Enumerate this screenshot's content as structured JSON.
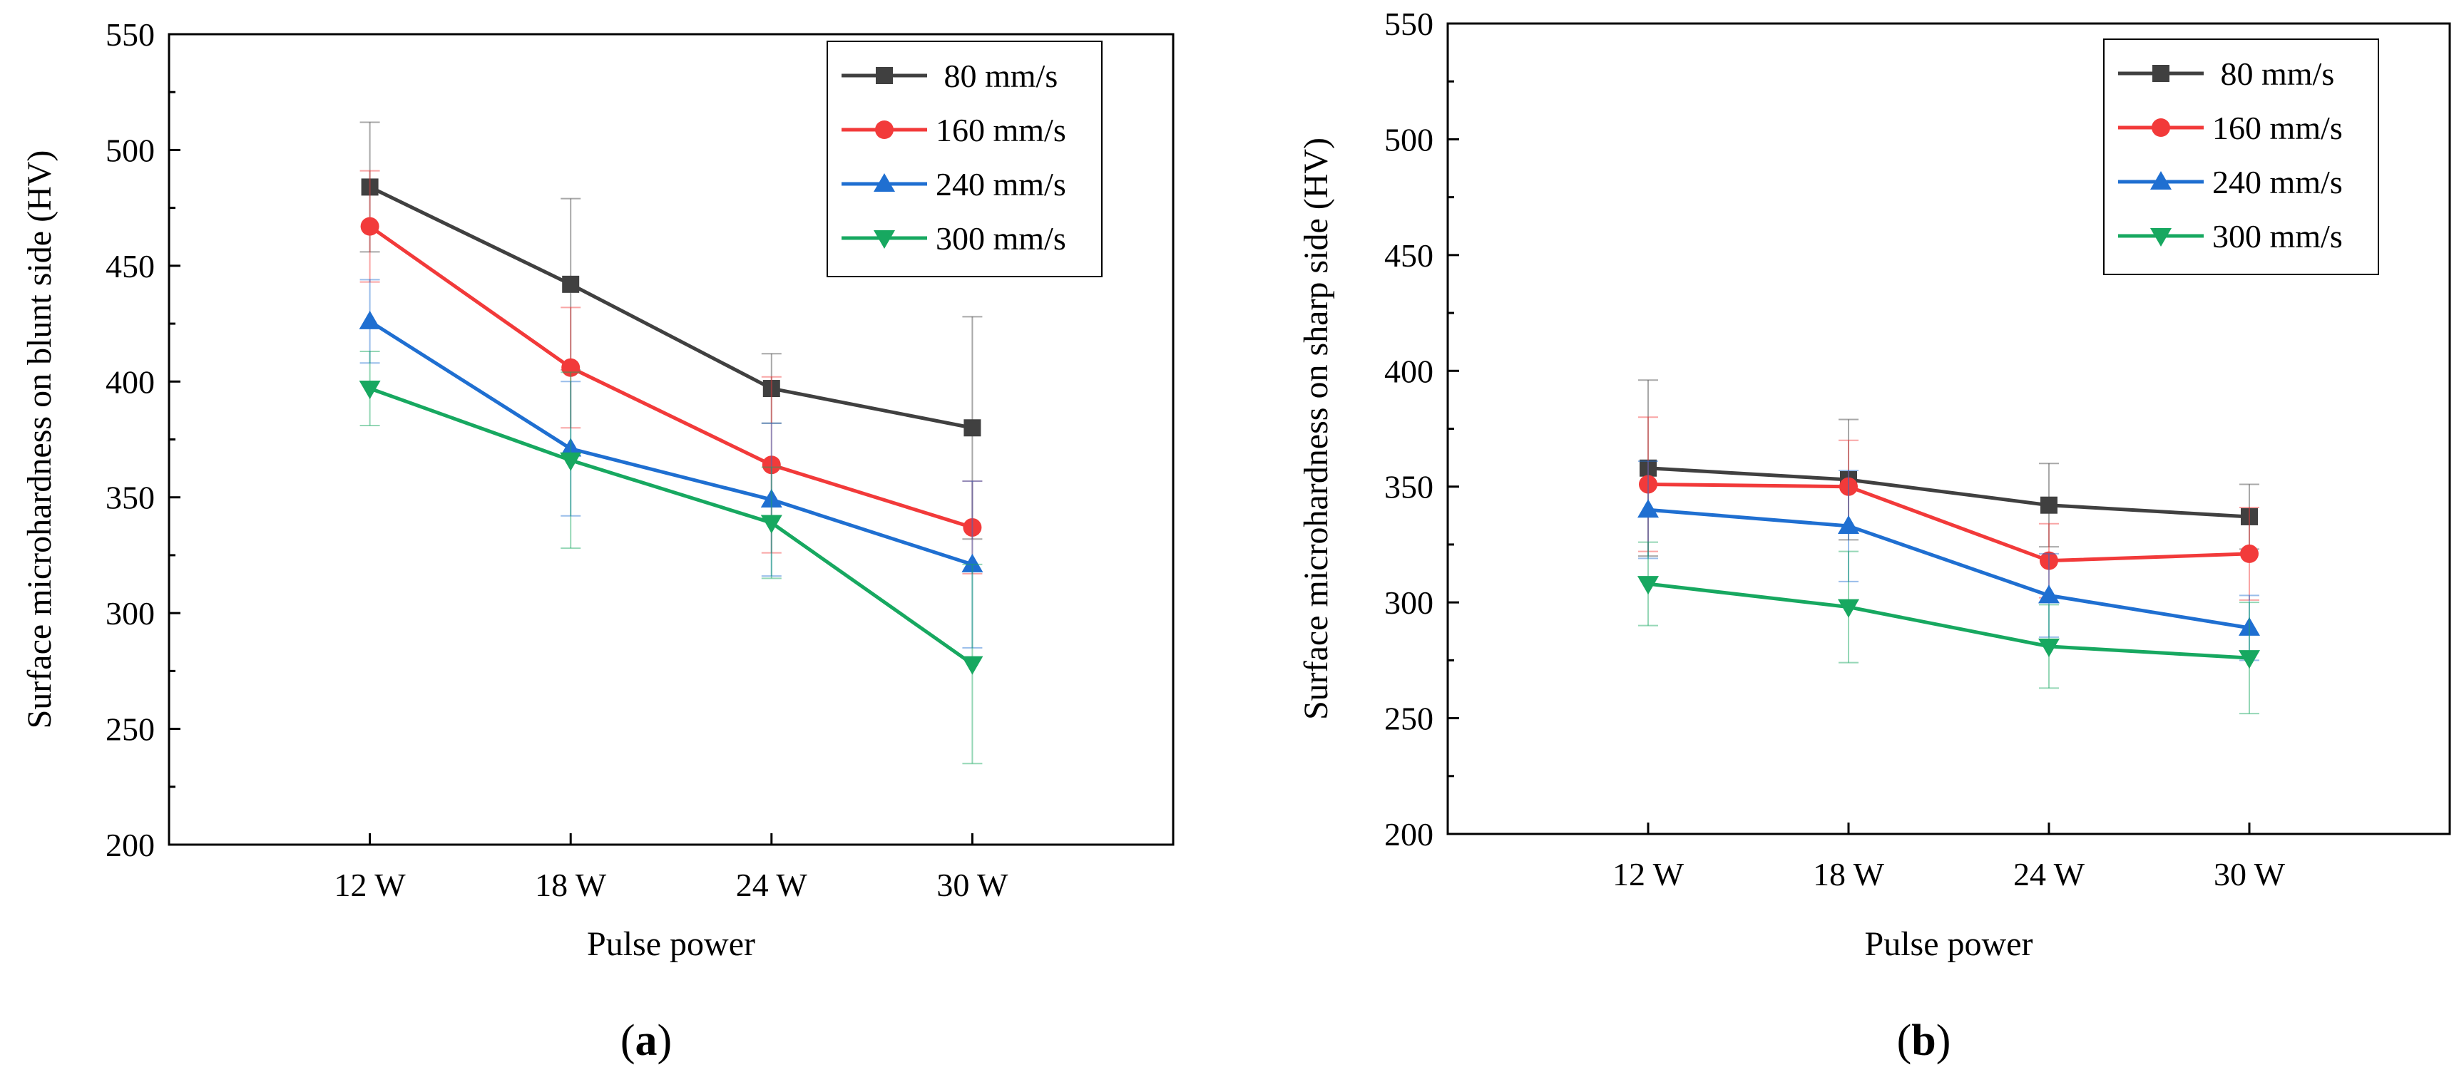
{
  "chart_data": [
    {
      "type": "line",
      "panel_label": "a",
      "xlabel": "Pulse power",
      "ylabel": "Surface microhardness on blunt side (HV)",
      "categories": [
        "12 W",
        "18 W",
        "24 W",
        "30 W"
      ],
      "ylim": [
        200,
        550
      ],
      "yticks": [
        "200",
        "250",
        "300",
        "350",
        "400",
        "450",
        "500",
        "550"
      ],
      "legend_position": "top-right",
      "series": [
        {
          "name": " 80 mm/s",
          "color": "#404040",
          "marker": "square",
          "values": [
            484,
            442,
            397,
            380
          ],
          "errors": [
            28,
            37,
            15,
            48
          ]
        },
        {
          "name": "160 mm/s",
          "color": "#f23a3a",
          "marker": "circle",
          "values": [
            467,
            406,
            364,
            337
          ],
          "errors": [
            24,
            26,
            38,
            20
          ]
        },
        {
          "name": "240 mm/s",
          "color": "#1f6fd1",
          "marker": "triangle-up",
          "values": [
            426,
            371,
            349,
            321
          ],
          "errors": [
            18,
            29,
            33,
            36
          ]
        },
        {
          "name": "300 mm/s",
          "color": "#17a860",
          "marker": "triangle-down",
          "values": [
            397,
            366,
            339,
            278
          ],
          "errors": [
            16,
            38,
            24,
            43
          ]
        }
      ]
    },
    {
      "type": "line",
      "panel_label": "b",
      "xlabel": "Pulse power",
      "ylabel": "Surface microhardness on sharp side (HV)",
      "categories": [
        "12 W",
        "18 W",
        "24 W",
        "30 W"
      ],
      "ylim": [
        200,
        550
      ],
      "yticks": [
        "200",
        "250",
        "300",
        "350",
        "400",
        "450",
        "500",
        "550"
      ],
      "legend_position": "top-right",
      "series": [
        {
          "name": " 80 mm/s",
          "color": "#404040",
          "marker": "square",
          "values": [
            358,
            353,
            342,
            337
          ],
          "errors": [
            38,
            26,
            18,
            14
          ]
        },
        {
          "name": "160 mm/s",
          "color": "#f23a3a",
          "marker": "circle",
          "values": [
            351,
            350,
            318,
            321
          ],
          "errors": [
            29,
            20,
            16,
            20
          ]
        },
        {
          "name": "240 mm/s",
          "color": "#1f6fd1",
          "marker": "triangle-up",
          "values": [
            340,
            333,
            303,
            289
          ],
          "errors": [
            21,
            24,
            18,
            14
          ]
        },
        {
          "name": "300 mm/s",
          "color": "#17a860",
          "marker": "triangle-down",
          "values": [
            308,
            298,
            281,
            276
          ],
          "errors": [
            18,
            24,
            18,
            24
          ]
        }
      ]
    }
  ]
}
